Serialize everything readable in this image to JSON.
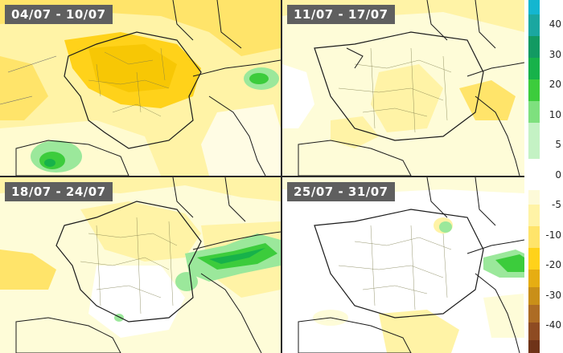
{
  "panels": [
    {
      "label": "04/07 - 10/07"
    },
    {
      "label": "11/07 - 17/07"
    },
    {
      "label": "18/07 - 24/07"
    },
    {
      "label": "25/07 - 31/07"
    }
  ],
  "legend": {
    "ticks": [
      "40",
      "30",
      "20",
      "10",
      "5",
      "0",
      "-5",
      "-10",
      "-20",
      "-30",
      "-40"
    ],
    "colors_positive": [
      "#13b6d0",
      "#1aa7a0",
      "#129a62",
      "#17b24a",
      "#3ccc3c",
      "#7ee07e",
      "#c4f2c4"
    ],
    "colors_negative": [
      "#fdfad8",
      "#fff3a6",
      "#ffe46a",
      "#ffd21a",
      "#e6ad12",
      "#c98f18",
      "#ad6c24",
      "#8e4b22",
      "#6f3318"
    ]
  },
  "colors": {
    "sea": "#ffffff",
    "land_pale": "#fefcd8",
    "anomaly_light": "#fff3a6",
    "anomaly_mid": "#ffe46a",
    "anomaly_strong": "#ffd21a",
    "anomaly_deep": "#f5c400",
    "wet_light": "#9be89b",
    "wet_mid": "#3ccc3c",
    "wet_strong": "#17b24a",
    "border": "#1a1a1a"
  }
}
